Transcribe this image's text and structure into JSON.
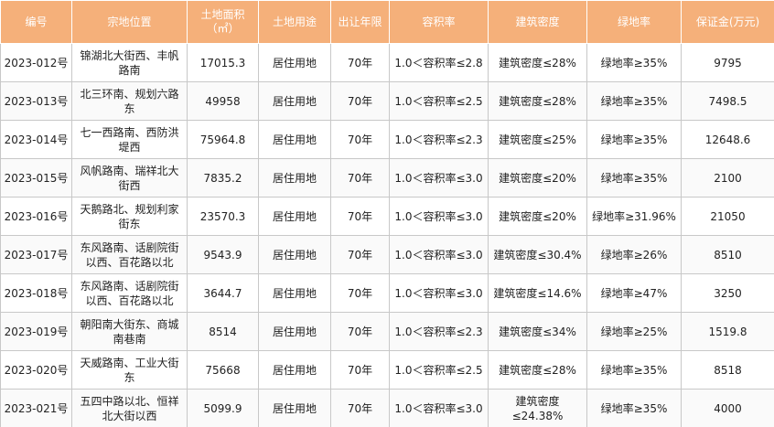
{
  "table": {
    "headers": {
      "id": "编号",
      "location": "宗地位置",
      "area": "土地面积",
      "area_unit": "（㎡）",
      "use": "土地用途",
      "term": "出让年限",
      "far": "容积率",
      "density": "建筑密度",
      "green": "绿地率",
      "deposit": "保证金(万元)"
    },
    "rows": [
      {
        "id": "2023-012号",
        "location": "锦湖北大街西、丰帆路南",
        "area": "17015.3",
        "use": "居住用地",
        "term": "70年",
        "far": "1.0＜容积率≤2.8",
        "density": "建筑密度≤28%",
        "green": "绿地率≥35%",
        "deposit": "9795"
      },
      {
        "id": "2023-013号",
        "location": "北三环南、规划六路东",
        "area": "49958",
        "use": "居住用地",
        "term": "70年",
        "far": "1.0＜容积率≤2.5",
        "density": "建筑密度≤28%",
        "green": "绿地率≥35%",
        "deposit": "7498.5"
      },
      {
        "id": "2023-014号",
        "location": "七一西路南、西防洪堤西",
        "area": "75964.8",
        "use": "居住用地",
        "term": "70年",
        "far": "1.0＜容积率≤2.3",
        "density": "建筑密度≤25%",
        "green": "绿地率≥35%",
        "deposit": "12648.6"
      },
      {
        "id": "2023-015号",
        "location": "风帆路南、瑞祥北大街西",
        "area": "7835.2",
        "use": "居住用地",
        "term": "70年",
        "far": "1.0＜容积率≤3.0",
        "density": "建筑密度≤20%",
        "green": "绿地率≥35%",
        "deposit": "2100"
      },
      {
        "id": "2023-016号",
        "location": "天鹅路北、规划利家街东",
        "area": "23570.3",
        "use": "居住用地",
        "term": "70年",
        "far": "1.0＜容积率≤3.0",
        "density": "建筑密度≤20%",
        "green": "绿地率≥31.96%",
        "deposit": "21050"
      },
      {
        "id": "2023-017号",
        "location": "东风路南、话剧院街以西、百花路以北",
        "area": "9543.9",
        "use": "居住用地",
        "term": "70年",
        "far": "1.0＜容积率≤3.0",
        "density": "建筑密度≤30.4%",
        "green": "绿地率≥26%",
        "deposit": "8510"
      },
      {
        "id": "2023-018号",
        "location": "东风路南、话剧院街以西、百花路以北",
        "area": "3644.7",
        "use": "居住用地",
        "term": "70年",
        "far": "1.0＜容积率≤3.0",
        "density": "建筑密度≤14.6%",
        "green": "绿地率≥47%",
        "deposit": "3250"
      },
      {
        "id": "2023-019号",
        "location": "朝阳南大街东、商城南巷南",
        "area": "8514",
        "use": "居住用地",
        "term": "70年",
        "far": "1.0＜容积率≤2.3",
        "density": "建筑密度≤34%",
        "green": "绿地率≥25%",
        "deposit": "1519.8"
      },
      {
        "id": "2023-020号",
        "location": "天威路南、工业大街东",
        "area": "75668",
        "use": "居住用地",
        "term": "70年",
        "far": "1.0＜容积率≤2.5",
        "density": "建筑密度≤28%",
        "green": "绿地率≥35%",
        "deposit": "8518"
      },
      {
        "id": "2023-021号",
        "location": "五四中路以北、恒祥北大街以西",
        "area": "5099.9",
        "use": "居住用地",
        "term": "70年",
        "far": "1.0＜容积率≤3.0",
        "density": "建筑密度≤24.38%",
        "green": "绿地率≥35%",
        "deposit": "4000"
      }
    ]
  }
}
